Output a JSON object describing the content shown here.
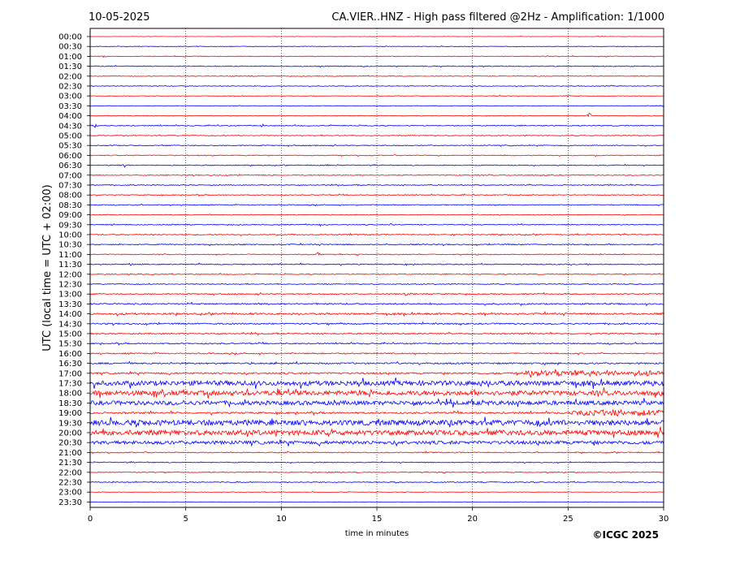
{
  "header": {
    "date": "10-05-2025",
    "title": "CA.VIER..HNZ - High pass filtered @2Hz - Amplification: 1/1000"
  },
  "copyright": "©ICGC 2025",
  "colors": {
    "even_trace": "#ff0000",
    "odd_trace": "#0000ff",
    "grid": "#000000",
    "background": "#ffffff"
  },
  "chart_data": {
    "type": "line",
    "title": "CA.VIER..HNZ - High pass filtered @2Hz - Amplification: 1/1000",
    "xlabel": "time in minutes",
    "ylabel": "UTC (local time = UTC + 02:00)",
    "xlim": [
      0,
      30
    ],
    "x_ticks": [
      0,
      5,
      10,
      15,
      20,
      25,
      30
    ],
    "vertical_grid": [
      5,
      10,
      15,
      20,
      25
    ],
    "grid": true,
    "row_labels": [
      "00:00",
      "00:30",
      "01:00",
      "01:30",
      "02:00",
      "02:30",
      "03:00",
      "03:30",
      "04:00",
      "04:30",
      "05:00",
      "05:30",
      "06:00",
      "06:30",
      "07:00",
      "07:30",
      "08:00",
      "08:30",
      "09:00",
      "09:30",
      "10:00",
      "10:30",
      "11:00",
      "11:30",
      "12:00",
      "12:30",
      "13:00",
      "13:30",
      "14:00",
      "14:30",
      "15:00",
      "15:30",
      "16:00",
      "16:30",
      "17:00",
      "17:30",
      "18:00",
      "18:30",
      "19:00",
      "19:30",
      "20:00",
      "20:30",
      "21:00",
      "21:30",
      "22:00",
      "22:30",
      "23:00",
      "23:30"
    ],
    "traces": [
      {
        "label": "00:00",
        "color": "red",
        "noise": 0.2,
        "events": []
      },
      {
        "label": "00:30",
        "color": "blue",
        "noise": 0.3,
        "events": []
      },
      {
        "label": "01:00",
        "color": "red",
        "noise": 0.4,
        "events": [
          {
            "t": 0.8,
            "amp": 3
          }
        ]
      },
      {
        "label": "01:30",
        "color": "blue",
        "noise": 0.5,
        "events": []
      },
      {
        "label": "02:00",
        "color": "red",
        "noise": 0.4,
        "events": []
      },
      {
        "label": "02:30",
        "color": "blue",
        "noise": 0.4,
        "events": []
      },
      {
        "label": "03:00",
        "color": "red",
        "noise": 0.3,
        "events": [
          {
            "t": 21.5,
            "amp": 2
          },
          {
            "t": 25,
            "amp": 2
          }
        ]
      },
      {
        "label": "03:30",
        "color": "blue",
        "noise": 0.3,
        "events": []
      },
      {
        "label": "04:00",
        "color": "red",
        "noise": 0.3,
        "events": [
          {
            "t": 26.1,
            "amp": 7
          }
        ]
      },
      {
        "label": "04:30",
        "color": "blue",
        "noise": 0.5,
        "events": [
          {
            "t": 0.3,
            "amp": 4
          },
          {
            "t": 9,
            "amp": 2
          }
        ]
      },
      {
        "label": "05:00",
        "color": "red",
        "noise": 0.5,
        "events": []
      },
      {
        "label": "05:30",
        "color": "blue",
        "noise": 0.5,
        "events": []
      },
      {
        "label": "06:00",
        "color": "red",
        "noise": 0.5,
        "events": [
          {
            "t": 18.3,
            "amp": 2
          }
        ]
      },
      {
        "label": "06:30",
        "color": "blue",
        "noise": 0.5,
        "events": [
          {
            "t": 1.8,
            "amp": 2
          }
        ]
      },
      {
        "label": "07:00",
        "color": "red",
        "noise": 0.5,
        "events": [
          {
            "t": 9.6,
            "amp": 2
          }
        ]
      },
      {
        "label": "07:30",
        "color": "blue",
        "noise": 0.5,
        "events": []
      },
      {
        "label": "08:00",
        "color": "red",
        "noise": 0.5,
        "events": []
      },
      {
        "label": "08:30",
        "color": "blue",
        "noise": 0.5,
        "events": []
      },
      {
        "label": "09:00",
        "color": "red",
        "noise": 0.4,
        "events": []
      },
      {
        "label": "09:30",
        "color": "blue",
        "noise": 0.5,
        "events": [
          {
            "t": 12,
            "amp": 2
          },
          {
            "t": 15.8,
            "amp": 2
          }
        ]
      },
      {
        "label": "10:00",
        "color": "red",
        "noise": 0.6,
        "events": [
          {
            "t": 10.6,
            "amp": 2
          },
          {
            "t": 19,
            "amp": 2
          },
          {
            "t": 21,
            "amp": 2
          }
        ]
      },
      {
        "label": "10:30",
        "color": "blue",
        "noise": 0.6,
        "events": [
          {
            "t": 26,
            "amp": 2
          }
        ]
      },
      {
        "label": "11:00",
        "color": "red",
        "noise": 0.5,
        "events": [
          {
            "t": 11.9,
            "amp": 4
          }
        ]
      },
      {
        "label": "11:30",
        "color": "blue",
        "noise": 0.6,
        "events": [
          {
            "t": 2.1,
            "amp": 2
          },
          {
            "t": 17,
            "amp": 2
          }
        ]
      },
      {
        "label": "12:00",
        "color": "red",
        "noise": 0.5,
        "events": []
      },
      {
        "label": "12:30",
        "color": "blue",
        "noise": 0.5,
        "events": []
      },
      {
        "label": "13:00",
        "color": "red",
        "noise": 0.7,
        "events": [
          {
            "t": 16.5,
            "amp": 2
          }
        ]
      },
      {
        "label": "13:30",
        "color": "blue",
        "noise": 0.8,
        "events": []
      },
      {
        "label": "14:00",
        "color": "red",
        "noise": 1.0,
        "events": [
          {
            "t": 4,
            "amp": 2
          },
          {
            "t": 8.3,
            "amp": 3
          },
          {
            "t": 21,
            "amp": 2
          }
        ]
      },
      {
        "label": "14:30",
        "color": "blue",
        "noise": 0.8,
        "events": [
          {
            "t": 18.1,
            "amp": 3
          }
        ]
      },
      {
        "label": "15:00",
        "color": "red",
        "noise": 0.7,
        "events": []
      },
      {
        "label": "15:30",
        "color": "blue",
        "noise": 0.7,
        "events": []
      },
      {
        "label": "16:00",
        "color": "red",
        "noise": 0.7,
        "events": []
      },
      {
        "label": "16:30",
        "color": "blue",
        "noise": 0.9,
        "events": [
          {
            "t": 24.5,
            "amp": 2
          }
        ]
      },
      {
        "label": "17:00",
        "color": "red",
        "noise": 1.0,
        "events": [],
        "bursts": [
          {
            "from": 22.8,
            "to": 30,
            "amp": 3
          }
        ]
      },
      {
        "label": "17:30",
        "color": "blue",
        "noise": 2.8,
        "events": []
      },
      {
        "label": "18:00",
        "color": "red",
        "noise": 2.8,
        "events": []
      },
      {
        "label": "18:30",
        "color": "blue",
        "noise": 2.5,
        "events": []
      },
      {
        "label": "19:00",
        "color": "red",
        "noise": 1.0,
        "events": [],
        "bursts": [
          {
            "from": 25,
            "to": 30,
            "amp": 3
          }
        ]
      },
      {
        "label": "19:30",
        "color": "blue",
        "noise": 3.2,
        "events": []
      },
      {
        "label": "20:00",
        "color": "red",
        "noise": 3.0,
        "events": []
      },
      {
        "label": "20:30",
        "color": "blue",
        "noise": 2.0,
        "events": []
      },
      {
        "label": "21:00",
        "color": "red",
        "noise": 0.6,
        "events": []
      },
      {
        "label": "21:30",
        "color": "blue",
        "noise": 0.5,
        "events": []
      },
      {
        "label": "22:00",
        "color": "red",
        "noise": 0.5,
        "events": []
      },
      {
        "label": "22:30",
        "color": "blue",
        "noise": 0.5,
        "events": []
      },
      {
        "label": "23:00",
        "color": "red",
        "noise": 0.3,
        "events": []
      },
      {
        "label": "23:30",
        "color": "blue",
        "noise": 0.2,
        "events": []
      }
    ]
  }
}
